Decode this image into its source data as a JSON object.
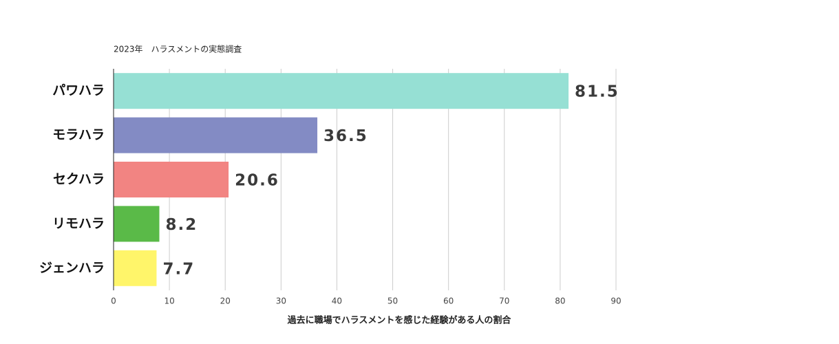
{
  "chart_data": {
    "type": "bar",
    "orientation": "horizontal",
    "title": "2023年　ハラスメントの実態調査",
    "x_label": "過去に職場でハラスメントを感じた経験がある人の割合",
    "categories": [
      "パワハラ",
      "モラハラ",
      "セクハラ",
      "リモハラ",
      "ジェンハラ"
    ],
    "values": [
      81.5,
      36.5,
      20.6,
      8.2,
      7.7
    ],
    "colors": [
      "#96e0d4",
      "#838bc4",
      "#f28482",
      "#5aba48",
      "#fff56a"
    ],
    "xlim": [
      0,
      90
    ],
    "xticks": [
      0,
      10,
      20,
      30,
      40,
      50,
      60,
      70,
      80,
      90
    ],
    "grid": true
  }
}
